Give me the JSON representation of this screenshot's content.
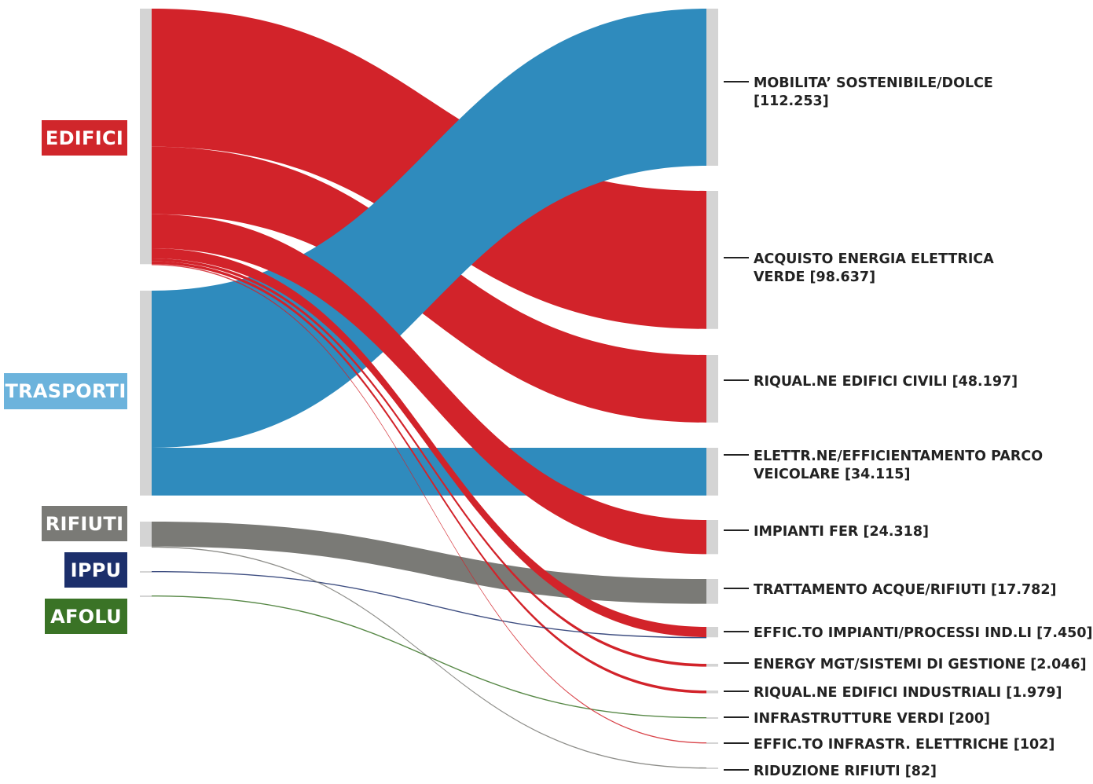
{
  "sources": [
    {
      "id": "edifici",
      "label": "EDIFICI",
      "color": "#d2232a"
    },
    {
      "id": "trasporti",
      "label": "TRASPORTI",
      "color": "#2f8bbd"
    },
    {
      "id": "rifiuti",
      "label": "RIFIUTI",
      "color": "#7a7a76"
    },
    {
      "id": "ippu",
      "label": "IPPU",
      "color": "#1c2f6b"
    },
    {
      "id": "afolu",
      "label": "AFOLU",
      "color": "#3a7326"
    }
  ],
  "label_colors": {
    "edifici": "#d0262b",
    "trasporti": "#6cb3dc",
    "rifiuti": "#7a7a76",
    "ippu": "#1c2f6b",
    "afolu": "#3a7326"
  },
  "targets": [
    {
      "id": "mobilita",
      "lines": [
        "MOBILITA’ SOSTENIBILE/DOLCE",
        "[112.253]"
      ]
    },
    {
      "id": "acquisto",
      "lines": [
        "ACQUISTO ENERGIA ELETTRICA",
        "VERDE [98.637]"
      ]
    },
    {
      "id": "riqual_civili",
      "lines": [
        "RIQUAL.NE EDIFICI CIVILI [48.197]"
      ]
    },
    {
      "id": "parco",
      "lines": [
        "ELETTR.NE/EFFICIENTAMENTO PARCO",
        "VEICOLARE [34.115]"
      ]
    },
    {
      "id": "fer",
      "lines": [
        "IMPIANTI FER [24.318]"
      ]
    },
    {
      "id": "acque",
      "lines": [
        "TRATTAMENTO ACQUE/RIFIUTI [17.782]"
      ]
    },
    {
      "id": "effic_ind",
      "lines": [
        "EFFIC.TO IMPIANTI/PROCESSI IND.LI [7.450]"
      ]
    },
    {
      "id": "energy_mgt",
      "lines": [
        "ENERGY MGT/SISTEMI DI GESTIONE [2.046]"
      ]
    },
    {
      "id": "riqual_ind",
      "lines": [
        "RIQUAL.NE EDIFICI INDUSTRIALI [1.979]"
      ]
    },
    {
      "id": "verdi",
      "lines": [
        "INFRASTRUTTURE VERDI [200]"
      ]
    },
    {
      "id": "effic_infr",
      "lines": [
        "EFFIC.TO INFRASTR. ELETTRICHE [102]"
      ]
    },
    {
      "id": "rid_rifiuti",
      "lines": [
        "RIDUZIONE RIFIUTI [82]"
      ]
    }
  ],
  "node_bar_color": "#d4d4d4",
  "flows": [
    {
      "source": "trasporti",
      "target": "mobilita",
      "value": 112253
    },
    {
      "source": "edifici",
      "target": "acquisto",
      "value": 98637
    },
    {
      "source": "edifici",
      "target": "riqual_civili",
      "value": 48197
    },
    {
      "source": "trasporti",
      "target": "parco",
      "value": 34115
    },
    {
      "source": "edifici",
      "target": "fer",
      "value": 24318
    },
    {
      "source": "rifiuti",
      "target": "acque",
      "value": 17782
    },
    {
      "source": "edifici",
      "target": "effic_ind",
      "value": 7300
    },
    {
      "source": "ippu",
      "target": "effic_ind",
      "value": 150
    },
    {
      "source": "edifici",
      "target": "energy_mgt",
      "value": 2046
    },
    {
      "source": "edifici",
      "target": "riqual_ind",
      "value": 1979
    },
    {
      "source": "afolu",
      "target": "verdi",
      "value": 200
    },
    {
      "source": "edifici",
      "target": "effic_infr",
      "value": 102
    },
    {
      "source": "rifiuti",
      "target": "rid_rifiuti",
      "value": 82
    }
  ]
}
